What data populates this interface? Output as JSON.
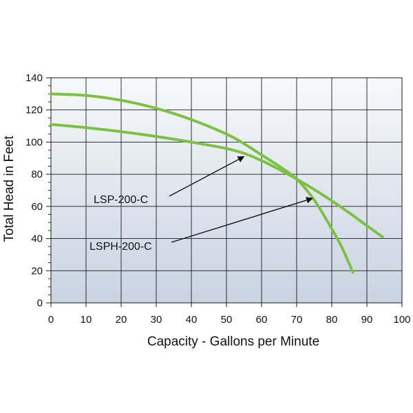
{
  "chart_data": {
    "type": "line",
    "xlabel": "Capacity - Gallons per Minute",
    "ylabel": "Total Head in Feet",
    "xlim": [
      0,
      100
    ],
    "ylim": [
      0,
      140
    ],
    "x_ticks": [
      "0",
      "10",
      "20",
      "30",
      "40",
      "50",
      "60",
      "70",
      "80",
      "90",
      "100"
    ],
    "y_ticks": [
      "0",
      "20",
      "40",
      "60",
      "80",
      "100",
      "120",
      "140"
    ],
    "grid": true,
    "legend": "none",
    "colors": {
      "line": "#7cc142",
      "grid": "#1a1a1a",
      "bg_top": "#f7f8fa",
      "bg_bottom": "#c9d3e2",
      "arrow": "#111111"
    },
    "series": [
      {
        "name": "LSP-200-C",
        "x": [
          0,
          10,
          20,
          30,
          40,
          50,
          55,
          60,
          65,
          70,
          75,
          80,
          85,
          90,
          94.5
        ],
        "y": [
          111,
          109,
          106.5,
          103.5,
          100,
          96,
          93,
          88.5,
          83,
          77,
          70.5,
          63.5,
          56,
          48,
          41
        ]
      },
      {
        "name": "LSPH-200-C",
        "x": [
          0,
          10,
          20,
          30,
          40,
          50,
          55,
          60,
          65,
          70,
          75,
          80,
          83,
          86
        ],
        "y": [
          130,
          129,
          126,
          121,
          114,
          105,
          99,
          92,
          85,
          77,
          64,
          46,
          34,
          19
        ]
      }
    ],
    "annotations": [
      {
        "label": "LSP-200-C",
        "arrow_to": [
          55,
          91
        ]
      },
      {
        "label": "LSPH-200-C",
        "arrow_to": [
          74.5,
          65
        ]
      }
    ]
  }
}
